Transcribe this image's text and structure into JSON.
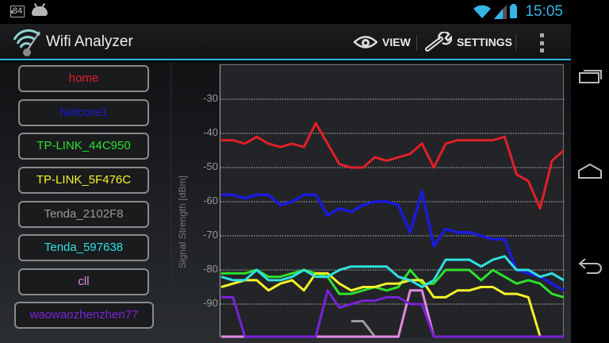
{
  "status_bar": {
    "notification_badge": "84",
    "notification_icons": [
      "notification-count-icon",
      "android-debug-icon"
    ],
    "system_icons": [
      "wifi-signal-icon",
      "cell-signal-icon",
      "battery-charging-icon"
    ],
    "time": "15:05"
  },
  "action_bar": {
    "app_icon": "wifi-analyzer-logo-icon",
    "title": "Wifi Analyzer",
    "view_label": "VIEW",
    "view_icon": "eye-icon",
    "settings_label": "SETTINGS",
    "settings_icon": "wrench-icon",
    "overflow_icon": "overflow-menu-icon"
  },
  "networks": [
    {
      "ssid": "home",
      "color": "#e0202a"
    },
    {
      "ssid": "Netcore1",
      "color": "#1a1adb"
    },
    {
      "ssid": "TP-LINK_44C950",
      "color": "#2ee02e"
    },
    {
      "ssid": "TP-LINK_5F476C",
      "color": "#f2f22a"
    },
    {
      "ssid": "Tenda_2102F8",
      "color": "#9a9a9a"
    },
    {
      "ssid": "Tenda_597638",
      "color": "#2fe0e0"
    },
    {
      "ssid": "cll",
      "color": "#e08ae0"
    },
    {
      "ssid": "waowaozhenzhen77",
      "color": "#7a22d8"
    }
  ],
  "chart": {
    "y_axis_label": "Signal Strength [dBm]",
    "y_ticks": [
      "-30",
      "-40",
      "-50",
      "-60",
      "-70",
      "-80",
      "-90"
    ]
  },
  "chart_data": {
    "type": "line",
    "title": "",
    "xlabel": "",
    "ylabel": "Signal Strength [dBm]",
    "ylim": [
      -100,
      -20
    ],
    "grid": true,
    "x": [
      0,
      1,
      2,
      3,
      4,
      5,
      6,
      7,
      8,
      9,
      10,
      11,
      12,
      13,
      14,
      15,
      16,
      17,
      18,
      19,
      20,
      21,
      22,
      23,
      24,
      25,
      26,
      27,
      28,
      29
    ],
    "series": [
      {
        "name": "home",
        "color": "#e0202a",
        "values": [
          -42,
          -42,
          -43,
          -41,
          -43,
          -44,
          -43,
          -44,
          -37,
          -43,
          -49,
          -50,
          -50,
          -47,
          -48,
          -47,
          -46,
          -43,
          -50,
          -43,
          -42,
          -42,
          -42,
          -42,
          -41,
          -52,
          -54,
          -62,
          -48,
          -45
        ]
      },
      {
        "name": "Netcore1",
        "color": "#1a1adb",
        "values": [
          -58,
          -58,
          -59,
          -58,
          -58,
          -61,
          -60,
          -58,
          -58,
          -64,
          -62,
          -63,
          -61,
          -60,
          -60,
          -61,
          -69,
          -57,
          -73,
          -68,
          -69,
          -69,
          -70,
          -71,
          -71,
          -80,
          -81,
          -82,
          -84,
          -86
        ]
      },
      {
        "name": "TP-LINK_44C950",
        "color": "#2ee02e",
        "values": [
          -81,
          -81,
          -81,
          -80,
          -82,
          -82,
          -81,
          -80,
          -81,
          -82,
          -87,
          -87,
          -86,
          -85,
          -86,
          -85,
          -80,
          -84,
          -84,
          -80,
          -80,
          -80,
          -83,
          -80,
          -82,
          -84,
          -83,
          -84,
          -87,
          -88
        ]
      },
      {
        "name": "TP-LINK_5F476C",
        "color": "#f2f22a",
        "values": [
          -85,
          -84,
          -83,
          -83,
          -86,
          -84,
          -83,
          -86,
          -81,
          -81,
          -84,
          -86,
          -85,
          -85,
          -84,
          -84,
          -83,
          -83,
          -88,
          -88,
          -86,
          -86,
          -85,
          -85,
          -87,
          -87,
          -88,
          -100,
          -100,
          -100
        ]
      },
      {
        "name": "Tenda_2102F8",
        "color": "#9a9a9a",
        "values": [
          null,
          null,
          null,
          null,
          null,
          null,
          null,
          null,
          null,
          null,
          null,
          -95,
          -95,
          -100,
          null,
          null,
          null,
          null,
          null,
          null,
          null,
          null,
          null,
          null,
          null,
          null,
          null,
          null,
          null,
          null
        ]
      },
      {
        "name": "Tenda_597638",
        "color": "#2fe0e0",
        "values": [
          -82,
          -83,
          -83,
          -80,
          -83,
          -83,
          -82,
          -80,
          -82,
          -82,
          -80,
          -79,
          -79,
          -79,
          -79,
          -82,
          -83,
          -85,
          -83,
          -77,
          -77,
          -77,
          -79,
          -77,
          -76,
          -80,
          -80,
          -82,
          -81,
          -83
        ]
      },
      {
        "name": "cll",
        "color": "#e08ae0",
        "values": [
          -100,
          -100,
          -100,
          -100,
          -100,
          -100,
          -100,
          -100,
          -100,
          -100,
          -100,
          -100,
          -100,
          -100,
          -100,
          -100,
          -86,
          -86,
          -100,
          -100,
          -100,
          -100,
          -100,
          -100,
          -100,
          -100,
          -100,
          -100,
          -100,
          -100
        ]
      },
      {
        "name": "waowaozhenzhen77",
        "color": "#7a22d8",
        "values": [
          -88,
          -88,
          -100,
          -100,
          -100,
          -100,
          -100,
          -100,
          -100,
          -86,
          -91,
          -90,
          -89,
          -89,
          -88,
          -88,
          -90,
          -90,
          -100,
          -100,
          -100,
          -100,
          -100,
          -100,
          -100,
          -100,
          -100,
          -100,
          -100,
          -100
        ]
      }
    ]
  },
  "nav_bar": {
    "recent_apps_icon": "recent-apps-icon",
    "home_icon": "home-icon",
    "back_icon": "back-icon"
  }
}
